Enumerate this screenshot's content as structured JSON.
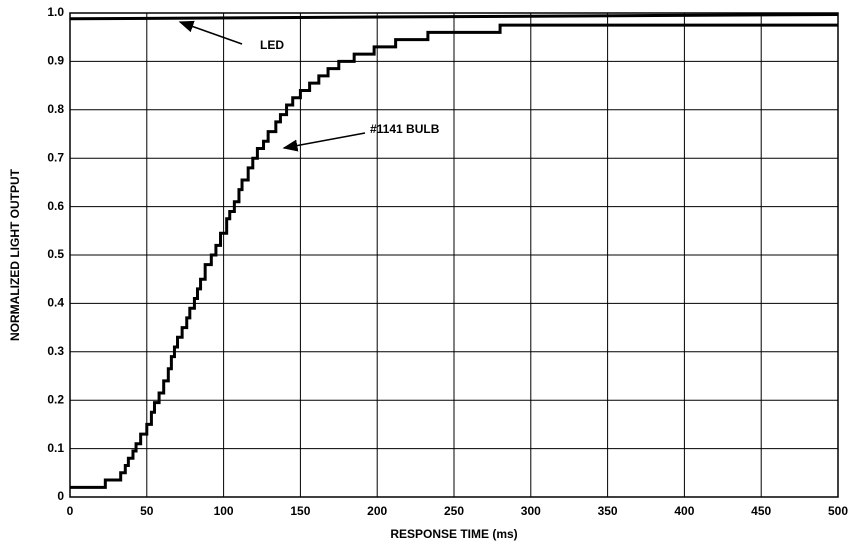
{
  "chart_data": {
    "type": "line",
    "step": "post",
    "xlabel": "RESPONSE TIME (ms)",
    "ylabel": "NORMALIZED LIGHT OUTPUT",
    "xlim": [
      0,
      500
    ],
    "ylim": [
      0,
      1
    ],
    "xticks": [
      0,
      50,
      100,
      150,
      200,
      250,
      300,
      350,
      400,
      450,
      500
    ],
    "yticks": [
      0,
      0.1,
      0.2,
      0.3,
      0.4,
      0.5,
      0.6,
      0.7,
      0.8,
      0.9,
      {
        "value": 1,
        "label": "1.0"
      }
    ],
    "grid": true,
    "annotations": [
      "LED",
      "#1141 BULB"
    ],
    "series": [
      {
        "name": "LED",
        "color": "#000000",
        "step": false,
        "x": [
          0,
          500
        ],
        "values": [
          0.988,
          0.997
        ]
      },
      {
        "name": "#1141 BULB",
        "color": "#000000",
        "step": true,
        "x": [
          0,
          23,
          33,
          36,
          38,
          41,
          43,
          46,
          50,
          53,
          55,
          58,
          61,
          64,
          66,
          68,
          70,
          73,
          76,
          78,
          81,
          83,
          85,
          88,
          92,
          95,
          98,
          102,
          104,
          107,
          110,
          112,
          116,
          119,
          122,
          126,
          129,
          134,
          137,
          141,
          145,
          150,
          156,
          162,
          168,
          175,
          185,
          198,
          212,
          233,
          280,
          500
        ],
        "values": [
          0.02,
          0.035,
          0.05,
          0.065,
          0.08,
          0.095,
          0.11,
          0.13,
          0.15,
          0.175,
          0.195,
          0.215,
          0.24,
          0.265,
          0.29,
          0.31,
          0.33,
          0.35,
          0.37,
          0.39,
          0.41,
          0.43,
          0.45,
          0.48,
          0.5,
          0.52,
          0.545,
          0.575,
          0.59,
          0.61,
          0.635,
          0.655,
          0.68,
          0.7,
          0.72,
          0.735,
          0.755,
          0.775,
          0.79,
          0.81,
          0.825,
          0.84,
          0.855,
          0.87,
          0.885,
          0.9,
          0.915,
          0.93,
          0.945,
          0.96,
          0.975,
          0.975
        ]
      }
    ]
  }
}
